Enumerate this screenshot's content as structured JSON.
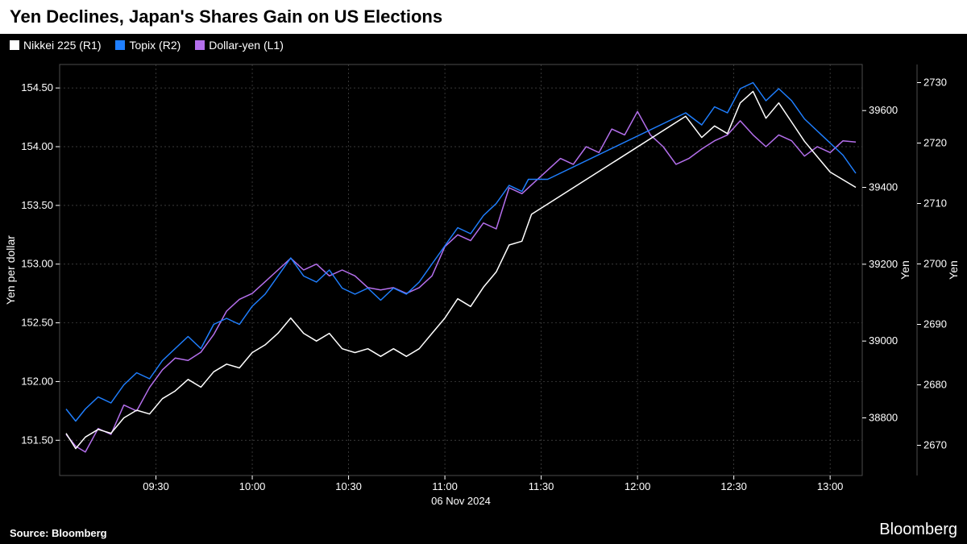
{
  "title": "Yen Declines, Japan's Shares Gain on US Elections",
  "source": "Source: Bloomberg",
  "brand": "Bloomberg",
  "legend": {
    "nikkei": {
      "label": "Nikkei 225 (R1)",
      "color": "#ffffff"
    },
    "topix": {
      "label": "Topix (R2)",
      "color": "#1f7fff"
    },
    "dollaryen": {
      "label": "Dollar-yen (L1)",
      "color": "#b46fec"
    }
  },
  "chart": {
    "type": "line",
    "background": "#000000",
    "grid_color": "#4d4d4d",
    "axis_text_color": "#ffffff",
    "axis_fontsize": 13,
    "line_width": 1.5,
    "x": {
      "label": "06 Nov 2024",
      "domain_min": 540,
      "domain_max": 790,
      "ticks": [
        570,
        600,
        630,
        660,
        690,
        720,
        750,
        780
      ],
      "tick_labels": [
        "09:30",
        "10:00",
        "10:30",
        "11:00",
        "11:30",
        "12:00",
        "12:30",
        "13:00"
      ]
    },
    "left_axis": {
      "label": "Yen per dollar",
      "domain_min": 151.2,
      "domain_max": 154.7,
      "ticks": [
        151.5,
        152.0,
        152.5,
        153.0,
        153.5,
        154.0,
        154.5
      ]
    },
    "right_axis_1": {
      "label": "Yen",
      "domain_min": 38650,
      "domain_max": 39720,
      "ticks": [
        38800,
        39000,
        39200,
        39400,
        39600
      ]
    },
    "right_axis_2": {
      "label": "Yen",
      "domain_min": 2665,
      "domain_max": 2733,
      "ticks": [
        2670,
        2680,
        2690,
        2700,
        2710,
        2720,
        2730
      ]
    },
    "series": {
      "dollaryen": {
        "axis": "left",
        "color": "#b46fec",
        "points": [
          [
            542,
            151.55
          ],
          [
            545,
            151.45
          ],
          [
            548,
            151.4
          ],
          [
            552,
            151.6
          ],
          [
            556,
            151.55
          ],
          [
            560,
            151.8
          ],
          [
            564,
            151.75
          ],
          [
            568,
            151.95
          ],
          [
            572,
            152.1
          ],
          [
            576,
            152.2
          ],
          [
            580,
            152.18
          ],
          [
            584,
            152.25
          ],
          [
            588,
            152.4
          ],
          [
            592,
            152.6
          ],
          [
            596,
            152.7
          ],
          [
            600,
            152.75
          ],
          [
            604,
            152.85
          ],
          [
            608,
            152.95
          ],
          [
            612,
            153.05
          ],
          [
            616,
            152.95
          ],
          [
            620,
            153.0
          ],
          [
            624,
            152.9
          ],
          [
            628,
            152.95
          ],
          [
            632,
            152.9
          ],
          [
            636,
            152.8
          ],
          [
            640,
            152.78
          ],
          [
            644,
            152.8
          ],
          [
            648,
            152.75
          ],
          [
            652,
            152.8
          ],
          [
            656,
            152.9
          ],
          [
            660,
            153.15
          ],
          [
            664,
            153.25
          ],
          [
            668,
            153.2
          ],
          [
            672,
            153.35
          ],
          [
            676,
            153.3
          ],
          [
            680,
            153.65
          ],
          [
            684,
            153.6
          ],
          [
            688,
            153.7
          ],
          [
            692,
            153.8
          ],
          [
            696,
            153.9
          ],
          [
            700,
            153.85
          ],
          [
            704,
            154.0
          ],
          [
            708,
            153.95
          ],
          [
            712,
            154.15
          ],
          [
            716,
            154.1
          ],
          [
            720,
            154.3
          ],
          [
            724,
            154.1
          ],
          [
            728,
            154.0
          ],
          [
            732,
            153.85
          ],
          [
            736,
            153.9
          ],
          [
            740,
            153.98
          ],
          [
            744,
            154.05
          ],
          [
            748,
            154.1
          ],
          [
            752,
            154.22
          ],
          [
            756,
            154.1
          ],
          [
            760,
            154.0
          ],
          [
            764,
            154.1
          ],
          [
            768,
            154.05
          ],
          [
            772,
            153.92
          ],
          [
            776,
            154.0
          ],
          [
            780,
            153.95
          ],
          [
            784,
            154.05
          ],
          [
            788,
            154.04
          ]
        ]
      },
      "topix": {
        "axis": "right2",
        "color": "#1f7fff",
        "points": [
          [
            542,
            2676
          ],
          [
            545,
            2674
          ],
          [
            548,
            2676
          ],
          [
            552,
            2678
          ],
          [
            556,
            2677
          ],
          [
            560,
            2680
          ],
          [
            564,
            2682
          ],
          [
            568,
            2681
          ],
          [
            572,
            2684
          ],
          [
            576,
            2686
          ],
          [
            580,
            2688
          ],
          [
            584,
            2686
          ],
          [
            588,
            2690
          ],
          [
            592,
            2691
          ],
          [
            596,
            2690
          ],
          [
            600,
            2693
          ],
          [
            604,
            2695
          ],
          [
            608,
            2698
          ],
          [
            612,
            2701
          ],
          [
            616,
            2698
          ],
          [
            620,
            2697
          ],
          [
            624,
            2699
          ],
          [
            628,
            2696
          ],
          [
            632,
            2695
          ],
          [
            636,
            2696
          ],
          [
            640,
            2694
          ],
          [
            644,
            2696
          ],
          [
            648,
            2695
          ],
          [
            652,
            2697
          ],
          [
            656,
            2700
          ],
          [
            660,
            2703
          ],
          [
            664,
            2706
          ],
          [
            668,
            2705
          ],
          [
            672,
            2708
          ],
          [
            676,
            2710
          ],
          [
            680,
            2713
          ],
          [
            684,
            2712
          ],
          [
            686,
            2714
          ],
          [
            692,
            2714
          ],
          [
            735,
            2725
          ],
          [
            740,
            2723
          ],
          [
            744,
            2726
          ],
          [
            748,
            2725
          ],
          [
            752,
            2729
          ],
          [
            756,
            2730
          ],
          [
            760,
            2727
          ],
          [
            764,
            2729
          ],
          [
            768,
            2727
          ],
          [
            772,
            2724
          ],
          [
            776,
            2722
          ],
          [
            780,
            2720
          ],
          [
            784,
            2718
          ],
          [
            788,
            2715
          ]
        ]
      },
      "nikkei": {
        "axis": "right1",
        "color": "#ffffff",
        "points": [
          [
            542,
            38760
          ],
          [
            545,
            38720
          ],
          [
            548,
            38750
          ],
          [
            552,
            38770
          ],
          [
            556,
            38760
          ],
          [
            560,
            38800
          ],
          [
            564,
            38820
          ],
          [
            568,
            38810
          ],
          [
            572,
            38850
          ],
          [
            576,
            38870
          ],
          [
            580,
            38900
          ],
          [
            584,
            38880
          ],
          [
            588,
            38920
          ],
          [
            592,
            38940
          ],
          [
            596,
            38930
          ],
          [
            600,
            38970
          ],
          [
            604,
            38990
          ],
          [
            608,
            39020
          ],
          [
            612,
            39060
          ],
          [
            616,
            39020
          ],
          [
            620,
            39000
          ],
          [
            624,
            39020
          ],
          [
            628,
            38980
          ],
          [
            632,
            38970
          ],
          [
            636,
            38980
          ],
          [
            640,
            38960
          ],
          [
            644,
            38980
          ],
          [
            648,
            38960
          ],
          [
            652,
            38980
          ],
          [
            656,
            39020
          ],
          [
            660,
            39060
          ],
          [
            664,
            39110
          ],
          [
            668,
            39090
          ],
          [
            672,
            39140
          ],
          [
            676,
            39180
          ],
          [
            680,
            39250
          ],
          [
            684,
            39260
          ],
          [
            687,
            39330
          ],
          [
            735,
            39585
          ],
          [
            740,
            39530
          ],
          [
            744,
            39560
          ],
          [
            748,
            39540
          ],
          [
            752,
            39620
          ],
          [
            756,
            39650
          ],
          [
            760,
            39580
          ],
          [
            764,
            39620
          ],
          [
            768,
            39570
          ],
          [
            772,
            39520
          ],
          [
            776,
            39480
          ],
          [
            780,
            39440
          ],
          [
            784,
            39420
          ],
          [
            788,
            39400
          ]
        ]
      }
    }
  }
}
